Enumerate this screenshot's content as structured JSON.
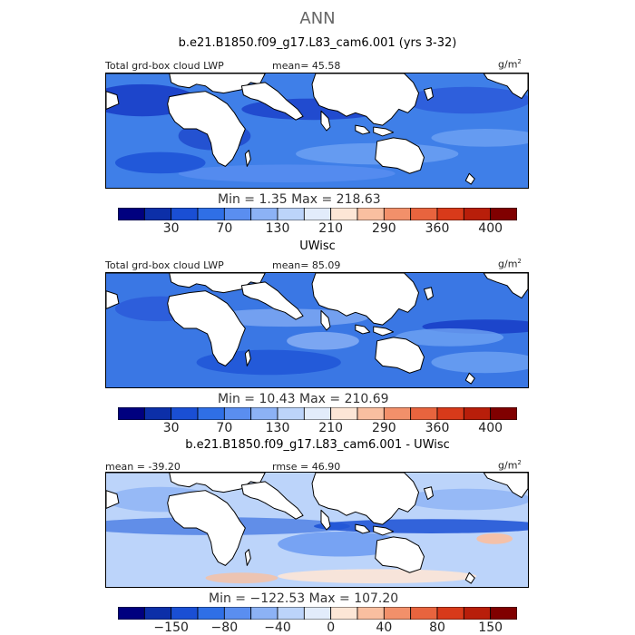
{
  "main_title": "ANN",
  "chart_data": [
    {
      "type": "heatmap",
      "title": "b.e21.B1850.f09_g17.L83_cam6.001 (yrs 3-32)",
      "variable": "Total grd-box cloud LWP",
      "mean_label": "mean=",
      "mean": "45.58",
      "units": "g/m",
      "units_exp": "2",
      "min_max": "Min =    1.35 Max = 218.63",
      "colorbar_ticks": [
        "30",
        "70",
        "130",
        "210",
        "290",
        "360",
        "400"
      ],
      "colorbar_colors": [
        "#00007f",
        "#0c2fa8",
        "#1a4fd4",
        "#2f6fe6",
        "#5a8ef0",
        "#8cb2f5",
        "#bcd4fa",
        "#e2ecfb",
        "#fde6d6",
        "#f9bfa0",
        "#f2906a",
        "#e8643e",
        "#d83a1a",
        "#b81e0a",
        "#800000"
      ]
    },
    {
      "type": "heatmap",
      "title": "UWisc",
      "variable": "Total grd-box cloud LWP",
      "mean_label": "mean=",
      "mean": "85.09",
      "units": "g/m",
      "units_exp": "2",
      "min_max": "Min =  10.43 Max = 210.69",
      "colorbar_ticks": [
        "30",
        "70",
        "130",
        "210",
        "290",
        "360",
        "400"
      ],
      "colorbar_colors": [
        "#00007f",
        "#0c2fa8",
        "#1a4fd4",
        "#2f6fe6",
        "#5a8ef0",
        "#8cb2f5",
        "#bcd4fa",
        "#e2ecfb",
        "#fde6d6",
        "#f9bfa0",
        "#f2906a",
        "#e8643e",
        "#d83a1a",
        "#b81e0a",
        "#800000"
      ]
    },
    {
      "type": "heatmap",
      "title": "b.e21.B1850.f09_g17.L83_cam6.001 - UWisc",
      "mean_label": "mean =",
      "mean": "-39.20",
      "rmse_label": "rmse =",
      "rmse": "46.90",
      "units": "g/m",
      "units_exp": "2",
      "min_max": "Min = −122.53 Max = 107.20",
      "colorbar_ticks": [
        "−150",
        "−80",
        "−40",
        "0",
        "40",
        "80",
        "150"
      ],
      "colorbar_colors": [
        "#00007f",
        "#0c2fa8",
        "#1a4fd4",
        "#2f6fe6",
        "#5a8ef0",
        "#8cb2f5",
        "#bcd4fa",
        "#e2ecfb",
        "#fde6d6",
        "#f9bfa0",
        "#f2906a",
        "#e8643e",
        "#d83a1a",
        "#b81e0a",
        "#800000"
      ]
    }
  ]
}
